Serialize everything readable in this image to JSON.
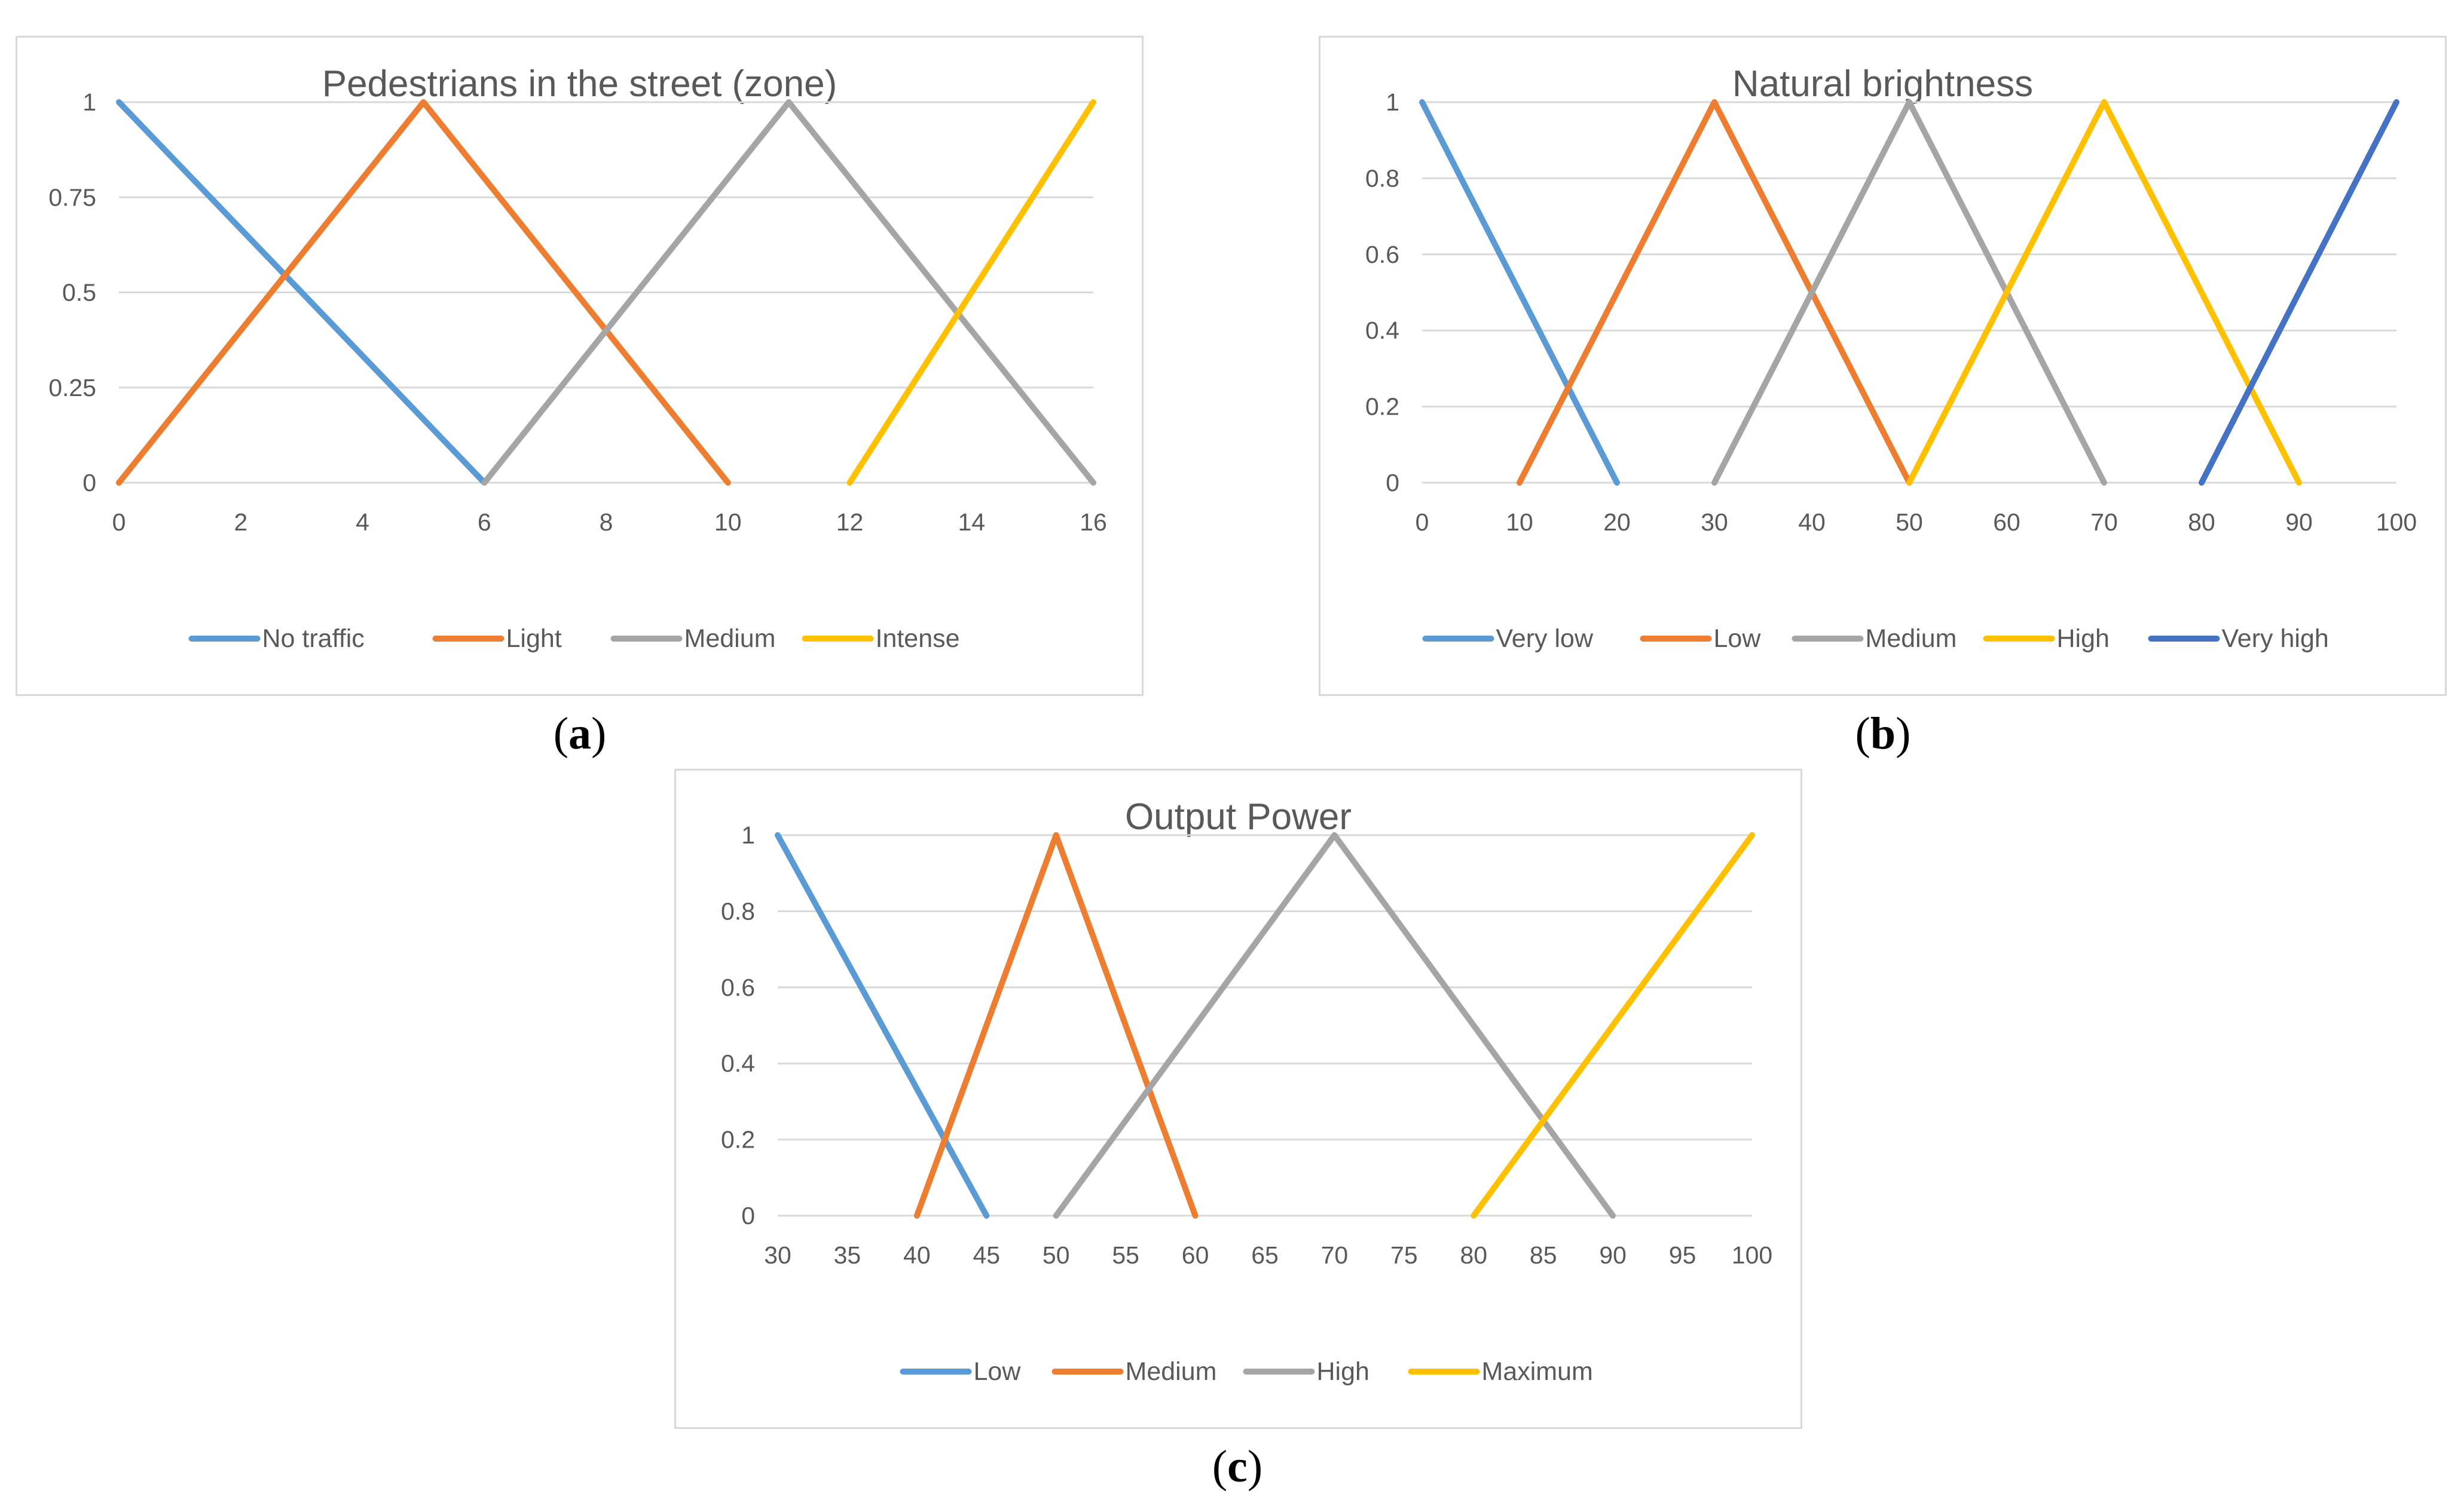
{
  "chart_data": [
    {
      "id": "a",
      "type": "line",
      "title": "Pedestrians in the street (zone)",
      "xlim": [
        0,
        16
      ],
      "ylim": [
        0,
        1
      ],
      "xticks": [
        "0",
        "2",
        "4",
        "6",
        "8",
        "10",
        "12",
        "14",
        "16"
      ],
      "yticks": [
        "0",
        "0.25",
        "0.5",
        "0.75",
        "1"
      ],
      "series": [
        {
          "name": "No traffic",
          "color": "#5b9bd5",
          "points": [
            [
              0,
              1
            ],
            [
              6,
              0
            ]
          ]
        },
        {
          "name": "Light",
          "color": "#ed7d31",
          "points": [
            [
              0,
              0
            ],
            [
              5,
              1
            ],
            [
              10,
              0
            ]
          ]
        },
        {
          "name": "Medium",
          "color": "#a5a5a5",
          "points": [
            [
              6,
              0
            ],
            [
              11,
              1
            ],
            [
              16,
              0
            ]
          ]
        },
        {
          "name": "Intense",
          "color": "#ffc000",
          "points": [
            [
              12,
              0
            ],
            [
              16,
              1
            ]
          ]
        }
      ],
      "legend_position": "bottom"
    },
    {
      "id": "b",
      "type": "line",
      "title": "Natural brightness",
      "xlim": [
        0,
        100
      ],
      "ylim": [
        0,
        1
      ],
      "xticks": [
        "0",
        "10",
        "20",
        "30",
        "40",
        "50",
        "60",
        "70",
        "80",
        "90",
        "100"
      ],
      "yticks": [
        "0",
        "0.2",
        "0.4",
        "0.6",
        "0.8",
        "1"
      ],
      "series": [
        {
          "name": "Very low",
          "color": "#5b9bd5",
          "points": [
            [
              0,
              1
            ],
            [
              20,
              0
            ]
          ]
        },
        {
          "name": "Low",
          "color": "#ed7d31",
          "points": [
            [
              10,
              0
            ],
            [
              30,
              1
            ],
            [
              50,
              0
            ]
          ]
        },
        {
          "name": "Medium",
          "color": "#a5a5a5",
          "points": [
            [
              30,
              0
            ],
            [
              50,
              1
            ],
            [
              70,
              0
            ]
          ]
        },
        {
          "name": "High",
          "color": "#ffc000",
          "points": [
            [
              50,
              0
            ],
            [
              70,
              1
            ],
            [
              90,
              0
            ]
          ]
        },
        {
          "name": "Very high",
          "color": "#4472c4",
          "points": [
            [
              80,
              0
            ],
            [
              100,
              1
            ]
          ]
        }
      ],
      "legend_position": "bottom"
    },
    {
      "id": "c",
      "type": "line",
      "title": "Output Power",
      "xlim": [
        30,
        100
      ],
      "ylim": [
        0,
        1
      ],
      "xticks": [
        "30",
        "35",
        "40",
        "45",
        "50",
        "55",
        "60",
        "65",
        "70",
        "75",
        "80",
        "85",
        "90",
        "95",
        "100"
      ],
      "yticks": [
        "0",
        "0.2",
        "0.4",
        "0.6",
        "0.8",
        "1"
      ],
      "series": [
        {
          "name": "Low",
          "color": "#5b9bd5",
          "points": [
            [
              30,
              1
            ],
            [
              45,
              0
            ]
          ]
        },
        {
          "name": "Medium",
          "color": "#ed7d31",
          "points": [
            [
              40,
              0
            ],
            [
              50,
              1
            ],
            [
              60,
              0
            ]
          ]
        },
        {
          "name": "High",
          "color": "#a5a5a5",
          "points": [
            [
              50,
              0
            ],
            [
              70,
              1
            ],
            [
              90,
              0
            ]
          ]
        },
        {
          "name": "Maximum",
          "color": "#ffc000",
          "points": [
            [
              80,
              0
            ],
            [
              100,
              1
            ]
          ]
        }
      ],
      "legend_position": "bottom"
    }
  ],
  "captions": {
    "a": "a",
    "b": "b",
    "c": "c"
  }
}
